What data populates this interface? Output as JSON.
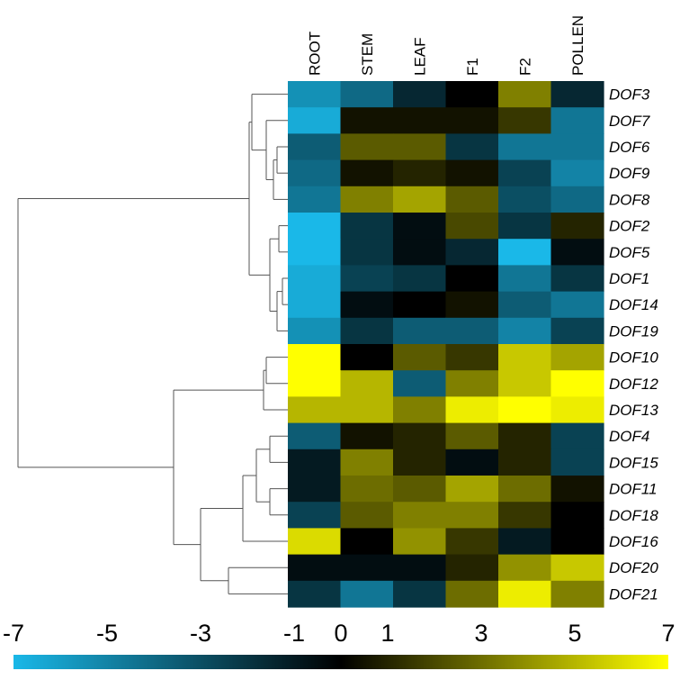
{
  "chart_data": {
    "type": "heatmap",
    "columns": [
      "ROOT",
      "STEM",
      "LEAF",
      "F1",
      "F2",
      "POLLEN"
    ],
    "rows": [
      "DOF3",
      "DOF7",
      "DOF6",
      "DOF9",
      "DOF8",
      "DOF2",
      "DOF5",
      "DOF1",
      "DOF14",
      "DOF19",
      "DOF10",
      "DOF12",
      "DOF13",
      "DOF4",
      "DOF15",
      "DOF11",
      "DOF18",
      "DOF16",
      "DOF20",
      "DOF21"
    ],
    "values": [
      [
        -5.5,
        -4,
        -1.5,
        0,
        3.5,
        -1.5
      ],
      [
        -6.5,
        0.5,
        0.5,
        0.5,
        1.5,
        -4.5
      ],
      [
        -3.5,
        2.5,
        2.5,
        -2,
        -4.5,
        -4.5
      ],
      [
        -4,
        0.5,
        1,
        0.5,
        -2.5,
        -5
      ],
      [
        -4.5,
        3.5,
        4.5,
        2.5,
        -3,
        -4
      ],
      [
        -7,
        -2,
        -0.5,
        2,
        -2,
        1
      ],
      [
        -7,
        -2,
        -0.5,
        -1.5,
        -7,
        -0.5
      ],
      [
        -6.5,
        -2.5,
        -2,
        0,
        -4.5,
        -2
      ],
      [
        -6.5,
        -0.5,
        0,
        0.5,
        -3.5,
        -4.5
      ],
      [
        -5.5,
        -2,
        -3.5,
        -3.5,
        -5,
        -2.5
      ],
      [
        7,
        0,
        2.5,
        1.5,
        5.5,
        4.5
      ],
      [
        7,
        5,
        -3.5,
        3.5,
        5.5,
        7
      ],
      [
        5,
        5,
        3.5,
        6.5,
        7,
        6.5
      ],
      [
        -3.5,
        0.5,
        1,
        2.5,
        1,
        -2.5
      ],
      [
        -1,
        3.5,
        1,
        -0.5,
        1,
        -2.5
      ],
      [
        -1,
        3,
        2.5,
        4.5,
        3,
        0.5
      ],
      [
        -2.5,
        2.5,
        3.5,
        3.5,
        1.5,
        0
      ],
      [
        6,
        0,
        4,
        1.5,
        -1,
        0
      ],
      [
        -0.5,
        -0.5,
        -0.5,
        1,
        4,
        5.5
      ],
      [
        -2,
        -4.5,
        -2,
        3,
        6.5,
        3.5
      ]
    ],
    "color_scale": {
      "min": -7,
      "mid": 0,
      "max": 7,
      "ticks": [
        "-7",
        "-5",
        "-3",
        "-1",
        "0",
        "1",
        "3",
        "5",
        "7"
      ],
      "low_color": "#1ab8e8",
      "mid_color": "#000000",
      "high_color": "#ffff00"
    },
    "dendrogram": "row clustering tree shown on left",
    "title": "",
    "xlabel": "",
    "ylabel": ""
  }
}
